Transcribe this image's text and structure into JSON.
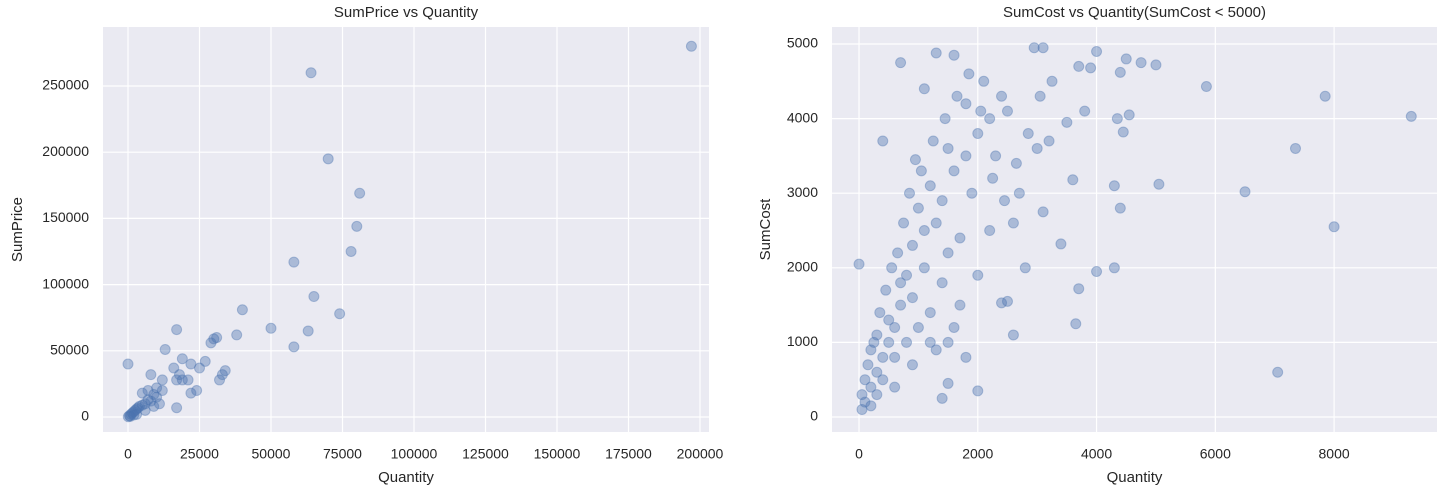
{
  "chart_data": [
    {
      "type": "scatter",
      "title": "SumPrice vs Quantity",
      "x_label": "Quantity",
      "y_label": "SumPrice",
      "color": "#4c72b0",
      "grid": true,
      "xlim": [
        -8741,
        203147
      ],
      "ylim": [
        -11330,
        294560
      ],
      "xticks": [
        0,
        25000,
        50000,
        75000,
        100000,
        125000,
        150000,
        175000,
        200000
      ],
      "yticks": [
        0,
        50000,
        100000,
        150000,
        200000,
        250000
      ],
      "x": [
        197000,
        64000,
        70000,
        81000,
        80000,
        78000,
        58000,
        65000,
        40000,
        74000,
        50000,
        63000,
        17000,
        38000,
        31000,
        30000,
        29000,
        58000,
        13000,
        19000,
        27000,
        0,
        22000,
        25000,
        34000,
        16000,
        33000,
        32000,
        18000,
        19000,
        21000,
        8000,
        12000,
        17000,
        24000,
        22000,
        17000,
        10000,
        7000,
        5000,
        9000,
        8000,
        6000,
        4000,
        3000,
        2000,
        1000,
        500,
        1500,
        2500,
        3500,
        5000,
        7000,
        10000,
        11000,
        12000,
        9000,
        6000,
        3000,
        100,
        800,
        2000
      ],
      "values": [
        280000,
        260000,
        195000,
        169000,
        144000,
        125000,
        117000,
        91000,
        81000,
        78000,
        67000,
        65000,
        66000,
        62000,
        60000,
        59000,
        56000,
        53000,
        51000,
        44000,
        42000,
        40000,
        40000,
        37000,
        35000,
        37000,
        32000,
        28000,
        32000,
        28000,
        28000,
        32000,
        28000,
        28000,
        20000,
        18000,
        7000,
        22000,
        20000,
        18000,
        17000,
        12000,
        10000,
        8000,
        6000,
        4000,
        2000,
        1000,
        3000,
        5000,
        7000,
        9000,
        13000,
        15000,
        10000,
        20000,
        8000,
        5000,
        2000,
        200,
        500,
        1500
      ]
    },
    {
      "type": "scatter",
      "title": "SumCost vs Quantity(SumCost < 5000)",
      "x_label": "Quantity",
      "y_label": "SumCost",
      "color": "#4c72b0",
      "grid": true,
      "xlim": [
        -455,
        9733
      ],
      "ylim": [
        -201,
        5228
      ],
      "xticks": [
        0,
        2000,
        4000,
        6000,
        8000
      ],
      "yticks": [
        0,
        1000,
        2000,
        3000,
        4000,
        5000
      ],
      "x": [
        9300,
        7850,
        7350,
        5850,
        6500,
        8000,
        7050,
        5050,
        5000,
        4750,
        4500,
        4550,
        4400,
        4450,
        4350,
        4300,
        4400,
        4300,
        4000,
        4000,
        3900,
        3800,
        3700,
        3700,
        3650,
        3600,
        3400,
        3500,
        3200,
        3100,
        3100,
        2950,
        2800,
        2600,
        2500,
        2400,
        2000,
        1800,
        1500,
        1400,
        0,
        1300,
        700,
        950,
        400,
        1100,
        1600,
        2100,
        2500,
        3000,
        2700,
        2300,
        2000,
        1800,
        2200,
        2600,
        1900,
        1500,
        1700,
        1200,
        1000,
        900,
        1300,
        1500,
        1100,
        800,
        1400,
        1700,
        1200,
        900,
        700,
        600,
        500,
        400,
        300,
        200,
        100,
        50,
        800,
        1000,
        1200,
        600,
        400,
        300,
        200,
        500,
        700,
        300,
        200,
        100,
        1100,
        1400,
        1600,
        1800,
        2200,
        2400,
        1600,
        2000,
        900,
        1300,
        1500,
        600,
        50,
        150,
        250,
        350,
        450,
        550,
        650,
        750,
        850,
        1050,
        1250,
        1450,
        1650,
        1850,
        2050,
        2250,
        2450,
        2650,
        2850,
        3050,
        3250
      ],
      "values": [
        4030,
        4300,
        3600,
        4430,
        3020,
        2550,
        600,
        3120,
        4720,
        4750,
        4800,
        4050,
        4620,
        3820,
        4000,
        3100,
        2800,
        2000,
        1950,
        4900,
        4680,
        4100,
        4700,
        1720,
        1250,
        3180,
        2320,
        3950,
        3700,
        2750,
        4950,
        4950,
        2000,
        1100,
        1550,
        1530,
        350,
        800,
        450,
        250,
        2050,
        4880,
        4750,
        3450,
        3700,
        4400,
        4850,
        4500,
        4100,
        3600,
        3000,
        3500,
        3800,
        4200,
        2500,
        2600,
        3000,
        3600,
        2400,
        3100,
        2800,
        2300,
        2600,
        2200,
        2000,
        1900,
        1800,
        1500,
        1400,
        1600,
        1500,
        1200,
        1000,
        800,
        600,
        400,
        200,
        100,
        1000,
        1200,
        1000,
        800,
        500,
        300,
        150,
        1300,
        1800,
        1100,
        900,
        500,
        2500,
        2900,
        3300,
        3500,
        4000,
        4300,
        1200,
        1900,
        700,
        900,
        1000,
        400,
        300,
        700,
        1000,
        1400,
        1700,
        2000,
        2200,
        2600,
        3000,
        3300,
        3700,
        4000,
        4300,
        4600,
        4100,
        3200,
        2900,
        3400,
        3800,
        4300,
        4500
      ]
    }
  ]
}
